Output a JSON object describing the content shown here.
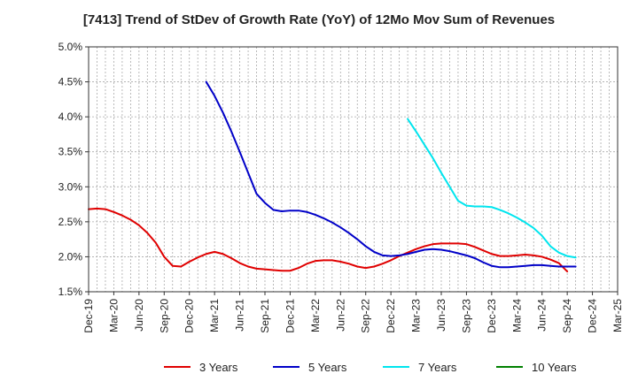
{
  "chart_data": {
    "type": "line",
    "title": "[7413]  Trend of StDev of Growth Rate (YoY) of 12Mo Mov Sum of Revenues",
    "xlabel": "",
    "ylabel": "",
    "ylim": [
      1.5,
      5.0
    ],
    "yticks": [
      "1.5%",
      "2.0%",
      "2.5%",
      "3.0%",
      "3.5%",
      "4.0%",
      "4.5%",
      "5.0%"
    ],
    "yticks_values": [
      1.5,
      2.0,
      2.5,
      3.0,
      3.5,
      4.0,
      4.5,
      5.0
    ],
    "xticks": [
      "Dec-19",
      "Mar-20",
      "Jun-20",
      "Sep-20",
      "Dec-20",
      "Mar-21",
      "Jun-21",
      "Sep-21",
      "Dec-21",
      "Mar-22",
      "Jun-22",
      "Sep-22",
      "Dec-22",
      "Mar-23",
      "Jun-23",
      "Sep-23",
      "Dec-23",
      "Mar-24",
      "Jun-24",
      "Sep-24",
      "Dec-24",
      "Mar-25"
    ],
    "x_start": "Dec-19",
    "x_months_total": 63,
    "grid": true,
    "legend_position": "bottom",
    "series": [
      {
        "name": "3 Years",
        "color": "#e00000",
        "start_month_index": 0,
        "values": [
          2.68,
          2.69,
          2.68,
          2.64,
          2.59,
          2.53,
          2.45,
          2.34,
          2.2,
          2.0,
          1.87,
          1.86,
          1.93,
          1.99,
          2.04,
          2.07,
          2.04,
          1.98,
          1.91,
          1.86,
          1.83,
          1.82,
          1.81,
          1.8,
          1.8,
          1.84,
          1.9,
          1.94,
          1.95,
          1.95,
          1.93,
          1.9,
          1.86,
          1.84,
          1.86,
          1.9,
          1.95,
          2.01,
          2.06,
          2.11,
          2.15,
          2.18,
          2.19,
          2.19,
          2.19,
          2.18,
          2.14,
          2.09,
          2.04,
          2.01,
          2.01,
          2.02,
          2.03,
          2.02,
          2.0,
          1.96,
          1.91,
          1.79
        ]
      },
      {
        "name": "5 Years",
        "color": "#0000c8",
        "start_month_index": 14,
        "values": [
          4.5,
          4.3,
          4.06,
          3.79,
          3.5,
          3.2,
          2.9,
          2.77,
          2.67,
          2.65,
          2.66,
          2.66,
          2.64,
          2.6,
          2.55,
          2.49,
          2.42,
          2.34,
          2.25,
          2.15,
          2.07,
          2.02,
          2.01,
          2.02,
          2.04,
          2.07,
          2.1,
          2.11,
          2.1,
          2.08,
          2.05,
          2.02,
          1.98,
          1.92,
          1.87,
          1.85,
          1.85,
          1.86,
          1.87,
          1.88,
          1.88,
          1.87,
          1.86,
          1.86,
          1.86
        ]
      },
      {
        "name": "7 Years",
        "color": "#00e5ee",
        "start_month_index": 38,
        "values": [
          3.97,
          3.79,
          3.6,
          3.41,
          3.2,
          3.0,
          2.8,
          2.73,
          2.72,
          2.72,
          2.71,
          2.67,
          2.62,
          2.56,
          2.49,
          2.41,
          2.3,
          2.15,
          2.06,
          2.01,
          1.99
        ]
      },
      {
        "name": "10 Years",
        "color": "#008000",
        "start_month_index": 0,
        "values": []
      }
    ]
  }
}
